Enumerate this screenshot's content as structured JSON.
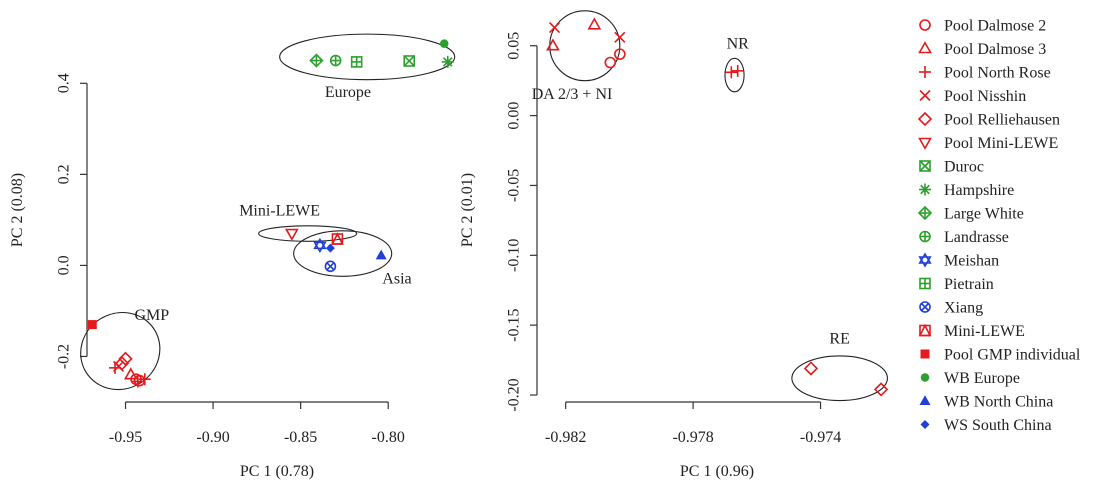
{
  "colors": {
    "red": "#e41a1c",
    "green": "#2ca02c",
    "blue": "#1f3fd6",
    "axis": "#333333"
  },
  "legend": [
    {
      "label": "Pool Dalmose 2",
      "marker": "circle-open",
      "color": "red"
    },
    {
      "label": "Pool Dalmose 3",
      "marker": "triangle-open",
      "color": "red"
    },
    {
      "label": "Pool North Rose",
      "marker": "plus",
      "color": "red"
    },
    {
      "label": "Pool Nisshin",
      "marker": "cross",
      "color": "red"
    },
    {
      "label": "Pool Relliehausen",
      "marker": "diamond-open",
      "color": "red"
    },
    {
      "label": "Pool Mini-LEWE",
      "marker": "triangle-down-open",
      "color": "red"
    },
    {
      "label": "Duroc",
      "marker": "square-cross",
      "color": "green"
    },
    {
      "label": "Hampshire",
      "marker": "asterisk",
      "color": "green"
    },
    {
      "label": "Large White",
      "marker": "diamond-plus",
      "color": "green"
    },
    {
      "label": "Landrasse",
      "marker": "circle-plus",
      "color": "green"
    },
    {
      "label": "Meishan",
      "marker": "star-of-david",
      "color": "blue"
    },
    {
      "label": "Pietrain",
      "marker": "square-plus",
      "color": "green"
    },
    {
      "label": "Xiang",
      "marker": "circle-cross",
      "color": "blue"
    },
    {
      "label": "Mini-LEWE",
      "marker": "square-triangle",
      "color": "red"
    },
    {
      "label": "Pool GMP individual",
      "marker": "square-filled",
      "color": "red"
    },
    {
      "label": "WB Europe",
      "marker": "circle-filled",
      "color": "green"
    },
    {
      "label": "WB North China",
      "marker": "triangle-filled",
      "color": "blue"
    },
    {
      "label": "WS South China",
      "marker": "diamond-filled",
      "color": "blue"
    }
  ],
  "chart_data": [
    {
      "type": "scatter",
      "xlabel": "PC 1 (0.78)",
      "ylabel": "PC 2 (0.08)",
      "xlim": [
        -0.972,
        -0.755
      ],
      "ylim": [
        -0.3,
        0.55
      ],
      "xticks": [
        -0.95,
        -0.9,
        -0.85,
        -0.8
      ],
      "xtick_labels": [
        "-0.95",
        "-0.90",
        "-0.85",
        "-0.80"
      ],
      "yticks": [
        -0.2,
        0.0,
        0.2,
        0.4
      ],
      "ytick_labels": [
        "-0.2",
        "0.0",
        "0.2",
        "0.4"
      ],
      "annotations": [
        {
          "text": "Europe",
          "x": -0.823,
          "y": 0.37
        },
        {
          "text": "Mini-LEWE",
          "x": -0.862,
          "y": 0.11
        },
        {
          "text": "Asia",
          "x": -0.795,
          "y": -0.04
        },
        {
          "text": "GMP",
          "x": -0.935,
          "y": -0.12
        }
      ],
      "ellipses": [
        {
          "cx": -0.812,
          "cy": 0.458,
          "rx": 0.05,
          "ry": 0.05
        },
        {
          "cx": -0.846,
          "cy": 0.07,
          "rx": 0.028,
          "ry": 0.017
        },
        {
          "cx": -0.826,
          "cy": 0.026,
          "rx": 0.028,
          "ry": 0.05
        },
        {
          "cx": -0.953,
          "cy": -0.188,
          "rx": 0.023,
          "ry": 0.083,
          "rot": 32
        }
      ],
      "points": [
        {
          "series": "Large White",
          "x": -0.841,
          "y": 0.45
        },
        {
          "series": "Landrasse",
          "x": -0.83,
          "y": 0.45
        },
        {
          "series": "Pietrain",
          "x": -0.818,
          "y": 0.447
        },
        {
          "series": "Duroc",
          "x": -0.788,
          "y": 0.449
        },
        {
          "series": "WB Europe",
          "x": -0.768,
          "y": 0.487
        },
        {
          "series": "Hampshire",
          "x": -0.766,
          "y": 0.447
        },
        {
          "series": "Pool Mini-LEWE",
          "x": -0.855,
          "y": 0.07
        },
        {
          "series": "Mini-LEWE",
          "x": -0.829,
          "y": 0.058
        },
        {
          "series": "Meishan",
          "x": -0.839,
          "y": 0.044
        },
        {
          "series": "WS South China",
          "x": -0.833,
          "y": 0.038
        },
        {
          "series": "WB North China",
          "x": -0.804,
          "y": 0.022
        },
        {
          "series": "Xiang",
          "x": -0.833,
          "y": -0.002
        },
        {
          "series": "Pool GMP individual",
          "x": -0.969,
          "y": -0.13
        },
        {
          "series": "Pool Relliehausen",
          "x": -0.95,
          "y": -0.205
        },
        {
          "series": "Pool Relliehausen",
          "x": -0.952,
          "y": -0.215
        },
        {
          "series": "Pool Nisshin",
          "x": -0.954,
          "y": -0.222
        },
        {
          "series": "Pool North Rose",
          "x": -0.956,
          "y": -0.225
        },
        {
          "series": "Pool Dalmose 3",
          "x": -0.947,
          "y": -0.24
        },
        {
          "series": "Pool Dalmose 2",
          "x": -0.944,
          "y": -0.25
        },
        {
          "series": "Pool Dalmose 2",
          "x": -0.942,
          "y": -0.253
        },
        {
          "series": "Pool North Rose",
          "x": -0.943,
          "y": -0.255
        },
        {
          "series": "Pool North Rose",
          "x": -0.939,
          "y": -0.25
        }
      ]
    },
    {
      "type": "scatter",
      "xlabel": "PC 1 (0.96)",
      "ylabel": "PC 2 (0.01)",
      "xlim": [
        -0.9829,
        -0.9716
      ],
      "ylim": [
        -0.205,
        0.072
      ],
      "xticks": [
        -0.982,
        -0.978,
        -0.974
      ],
      "xtick_labels": [
        "-0.982",
        "-0.978",
        "-0.974"
      ],
      "yticks": [
        -0.2,
        -0.15,
        -0.1,
        -0.05,
        0.0,
        0.05
      ],
      "ytick_labels": [
        "-0.20",
        "-0.15",
        "-0.10",
        "-0.05",
        "0.00",
        "0.05"
      ],
      "annotations": [
        {
          "text": "DA 2/3 + NI",
          "x": -0.9818,
          "y": 0.012
        },
        {
          "text": "NR",
          "x": -0.9766,
          "y": 0.048
        },
        {
          "text": "RE",
          "x": -0.9734,
          "y": -0.163
        }
      ],
      "ellipses": [
        {
          "cx": -0.9814,
          "cy": 0.05,
          "rx": 0.0011,
          "ry": 0.025
        },
        {
          "cx": -0.9767,
          "cy": 0.029,
          "rx": 0.0003,
          "ry": 0.012
        },
        {
          "cx": -0.9734,
          "cy": -0.188,
          "rx": 0.0015,
          "ry": 0.016
        }
      ],
      "points": [
        {
          "series": "Pool Nisshin",
          "x": -0.98235,
          "y": 0.063
        },
        {
          "series": "Pool Dalmose 3",
          "x": -0.9824,
          "y": 0.05
        },
        {
          "series": "Pool Dalmose 3",
          "x": -0.9811,
          "y": 0.065
        },
        {
          "series": "Pool Nisshin",
          "x": -0.9803,
          "y": 0.056
        },
        {
          "series": "Pool Dalmose 2",
          "x": -0.9806,
          "y": 0.038
        },
        {
          "series": "Pool Dalmose 2",
          "x": -0.9803,
          "y": 0.044
        },
        {
          "series": "Pool North Rose",
          "x": -0.9768,
          "y": 0.031
        },
        {
          "series": "Pool North Rose",
          "x": -0.9766,
          "y": 0.032
        },
        {
          "series": "Pool Relliehausen",
          "x": -0.9743,
          "y": -0.181
        },
        {
          "series": "Pool Relliehausen",
          "x": -0.9721,
          "y": -0.196
        }
      ]
    }
  ]
}
